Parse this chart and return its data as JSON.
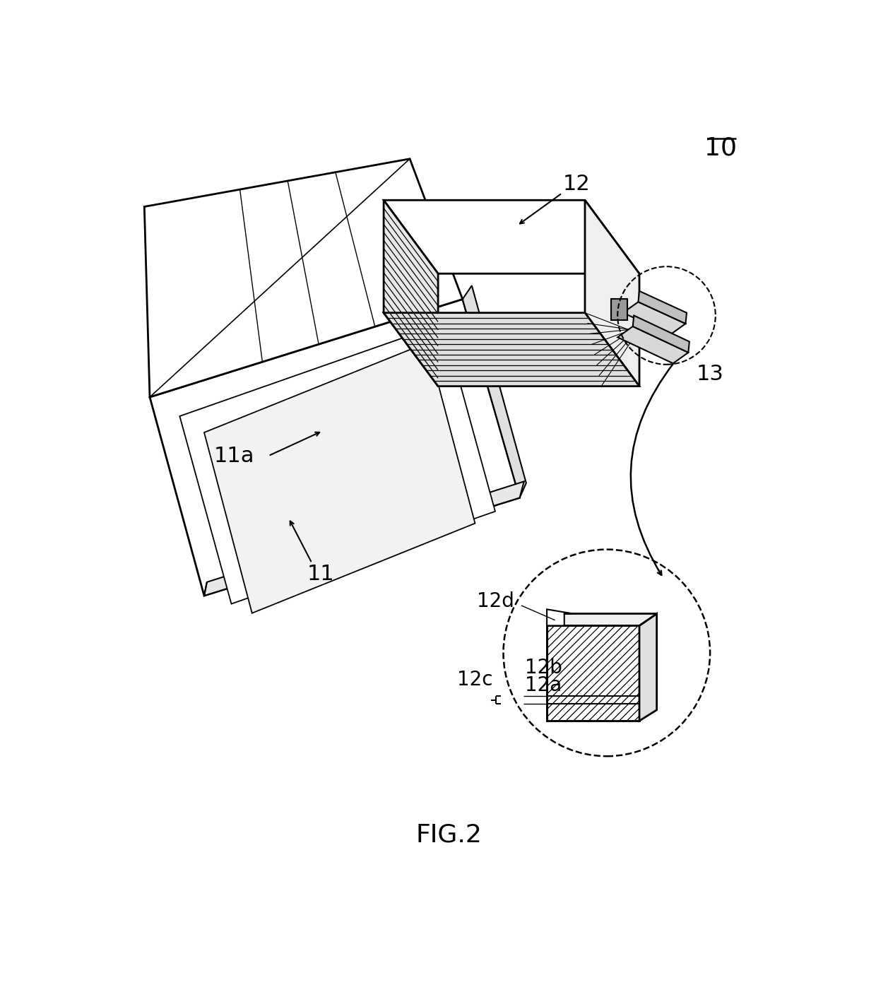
{
  "title": "FIG.2",
  "label_10": "10",
  "label_11": "11",
  "label_11a": "11a",
  "label_12": "12",
  "label_12a": "12a",
  "label_12b": "12b",
  "label_12c": "12c",
  "label_12d": "12d",
  "label_13": "13",
  "bg_color": "#ffffff",
  "line_color": "#000000"
}
